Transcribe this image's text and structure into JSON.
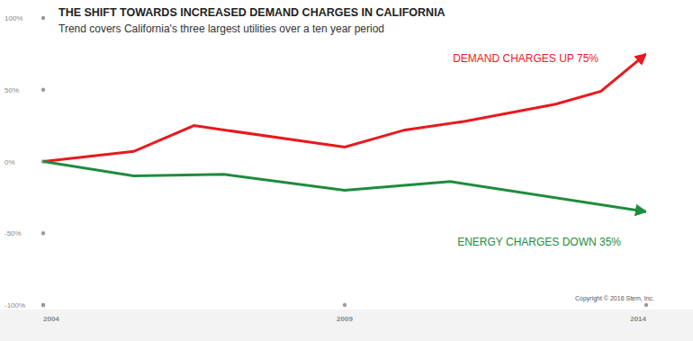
{
  "chart_data": {
    "type": "line",
    "title": "THE SHIFT TOWARDS INCREASED DEMAND CHARGES IN CALIFORNIA",
    "subtitle": "Trend covers California's three largest utilities over a ten year period",
    "annotations": [
      "Copyright © 2016 Stem, Inc."
    ],
    "xlim": [
      2004,
      2014
    ],
    "xticks": [
      2004,
      2009,
      2014
    ],
    "ylim": [
      -100,
      100
    ],
    "yticks": [
      {
        "value": -100,
        "label": "-100%"
      },
      {
        "value": -50,
        "label": "-50%"
      },
      {
        "value": 0,
        "label": "0%"
      },
      {
        "value": 50,
        "label": "50%"
      },
      {
        "value": 100,
        "label": "100%"
      }
    ],
    "grid": false,
    "series": [
      {
        "name": "DEMAND CHARGES UP 75%",
        "color": "#e8191e",
        "marker": "arrow",
        "x": [
          2004,
          2005.5,
          2006.5,
          2009,
          2010,
          2011,
          2012.5,
          2013.25,
          2014
        ],
        "values": [
          0,
          7,
          25,
          10,
          22,
          28,
          40,
          49,
          75
        ]
      },
      {
        "name": "ENERGY CHARGES DOWN 35%",
        "color": "#1e8c3c",
        "marker": "arrow",
        "x": [
          2004,
          2005.5,
          2007,
          2009,
          2010.75,
          2014
        ],
        "values": [
          0,
          -10,
          -9,
          -20,
          -14,
          -35
        ]
      }
    ]
  }
}
